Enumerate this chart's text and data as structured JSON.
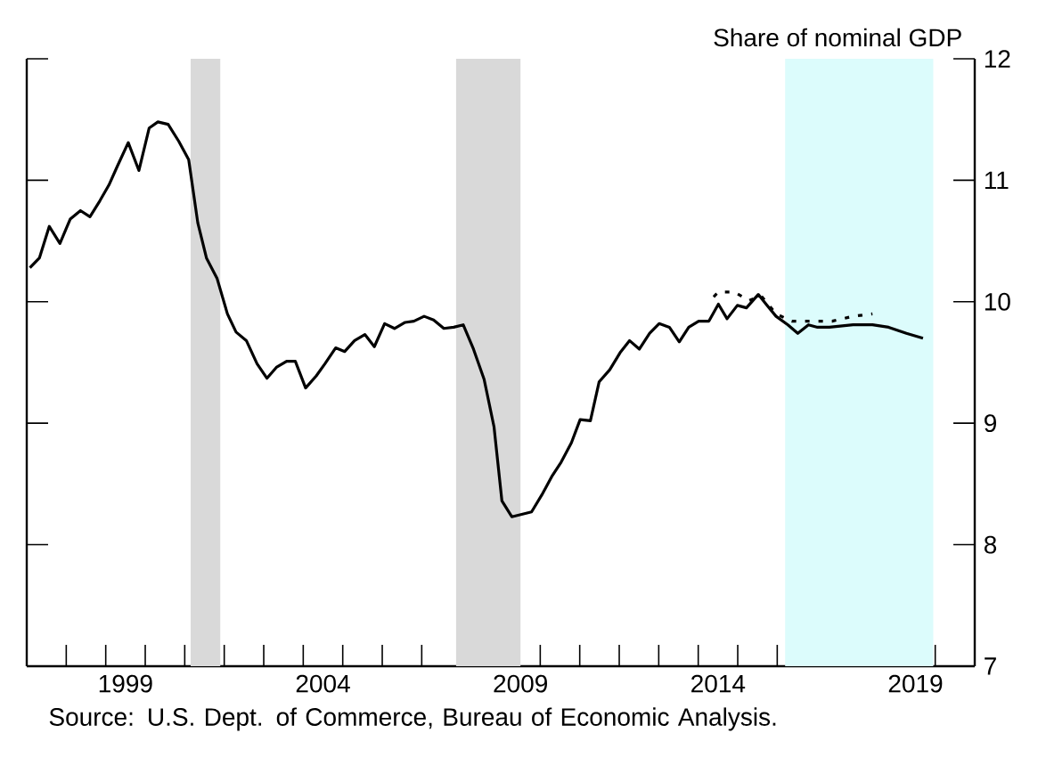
{
  "chart_data": {
    "type": "line",
    "ylabel": "Share of nominal GDP",
    "marker": "none",
    "xlim": [
      1997,
      2021
    ],
    "ylim": [
      7,
      12
    ],
    "yticks": [
      7,
      8,
      9,
      10,
      11,
      12
    ],
    "xticks": [
      {
        "value": 1998,
        "label": null
      },
      {
        "value": 1999,
        "label": null
      },
      {
        "value": 2000,
        "label": null
      },
      {
        "value": 2001,
        "label": null
      },
      {
        "value": 2002,
        "label": null
      },
      {
        "value": 2003,
        "label": null
      },
      {
        "value": 2004,
        "label": null
      },
      {
        "value": 2005,
        "label": null
      },
      {
        "value": 2006,
        "label": null
      },
      {
        "value": 2007,
        "label": null
      },
      {
        "value": 2008,
        "label": null
      },
      {
        "value": 2009,
        "label": null
      },
      {
        "value": 2010,
        "label": null
      },
      {
        "value": 2011,
        "label": null
      },
      {
        "value": 2012,
        "label": null
      },
      {
        "value": 2013,
        "label": null
      },
      {
        "value": 2014,
        "label": null
      },
      {
        "value": 2015,
        "label": null
      },
      {
        "value": 2016,
        "label": null
      },
      {
        "value": 2017,
        "label": null
      },
      {
        "value": 2018,
        "label": null
      },
      {
        "value": 2019,
        "label": null
      },
      {
        "value": 2020,
        "label": null
      },
      {
        "value": 1999.5,
        "label": "1999"
      },
      {
        "value": 2004.5,
        "label": "2004"
      },
      {
        "value": 2009.5,
        "label": "2009"
      },
      {
        "value": 2014.5,
        "label": "2014"
      },
      {
        "value": 2019.5,
        "label": "2019"
      }
    ],
    "bands": [
      {
        "axis": "x",
        "from": 2001.15,
        "to": 2001.9,
        "color": "#d9d9d9"
      },
      {
        "axis": "x",
        "from": 2007.87,
        "to": 2009.5,
        "color": "#d9d9d9"
      },
      {
        "axis": "x",
        "from": 2016.2,
        "to": 2019.95,
        "color": "#dcfcfc"
      }
    ],
    "series": [
      {
        "color": "#000000",
        "line_style": "solid",
        "x": [
          1997.08,
          1997.32,
          1997.57,
          1997.84,
          1998.1,
          1998.36,
          1998.6,
          1998.85,
          1999.08,
          1999.3,
          1999.57,
          1999.84,
          2000.1,
          2000.32,
          2000.58,
          2000.85,
          2001.1,
          2001.33,
          2001.55,
          2001.82,
          2002.08,
          2002.3,
          2002.56,
          2002.83,
          2003.08,
          2003.32,
          2003.58,
          2003.8,
          2004.06,
          2004.33,
          2004.55,
          2004.82,
          2005.05,
          2005.3,
          2005.56,
          2005.8,
          2006.06,
          2006.31,
          2006.58,
          2006.8,
          2007.06,
          2007.3,
          2007.56,
          2007.81,
          2008.05,
          2008.31,
          2008.58,
          2008.83,
          2009.03,
          2009.28,
          2009.78,
          2010.04,
          2010.29,
          2010.53,
          2010.79,
          2011.01,
          2011.27,
          2011.49,
          2011.76,
          2012.02,
          2012.26,
          2012.51,
          2012.77,
          2013.01,
          2013.27,
          2013.52,
          2013.76,
          2014.01,
          2014.27,
          2014.51,
          2014.73,
          2014.99,
          2015.22,
          2015.52,
          2015.74,
          2015.97,
          2016.27,
          2016.52,
          2016.79,
          2017.02,
          2017.32,
          2017.92,
          2018.41,
          2018.82,
          2019.27,
          2019.69
        ],
        "values": [
          10.28,
          10.36,
          10.62,
          10.48,
          10.68,
          10.75,
          10.7,
          10.83,
          10.96,
          11.12,
          11.31,
          11.08,
          11.43,
          11.48,
          11.46,
          11.32,
          11.17,
          10.65,
          10.36,
          10.19,
          9.9,
          9.75,
          9.68,
          9.49,
          9.37,
          9.46,
          9.51,
          9.51,
          9.29,
          9.39,
          9.49,
          9.62,
          9.59,
          9.68,
          9.73,
          9.63,
          9.82,
          9.78,
          9.83,
          9.84,
          9.88,
          9.85,
          9.78,
          9.79,
          9.81,
          9.61,
          9.36,
          8.97,
          8.36,
          8.23,
          8.27,
          8.41,
          8.56,
          8.68,
          8.84,
          9.03,
          9.02,
          9.34,
          9.44,
          9.58,
          9.68,
          9.61,
          9.74,
          9.82,
          9.79,
          9.67,
          9.79,
          9.84,
          9.84,
          9.98,
          9.86,
          9.97,
          9.95,
          10.06,
          9.97,
          9.88,
          9.81,
          9.74,
          9.81,
          9.79,
          9.79,
          9.81,
          9.81,
          9.79,
          9.74,
          9.7
        ]
      },
      {
        "color": "#000000",
        "line_style": "dotted",
        "x": [
          2014.39,
          2014.51,
          2014.91,
          2015.29,
          2015.59,
          2015.97,
          2016.37,
          2016.87,
          2017.39,
          2017.92,
          2018.41
        ],
        "values": [
          10.04,
          10.08,
          10.08,
          10.01,
          10.05,
          9.9,
          9.84,
          9.84,
          9.84,
          9.88,
          9.9
        ]
      }
    ],
    "annotations": [
      "Source:  U.S. Dept. of Commerce, Bureau of Economic Analysis."
    ]
  }
}
